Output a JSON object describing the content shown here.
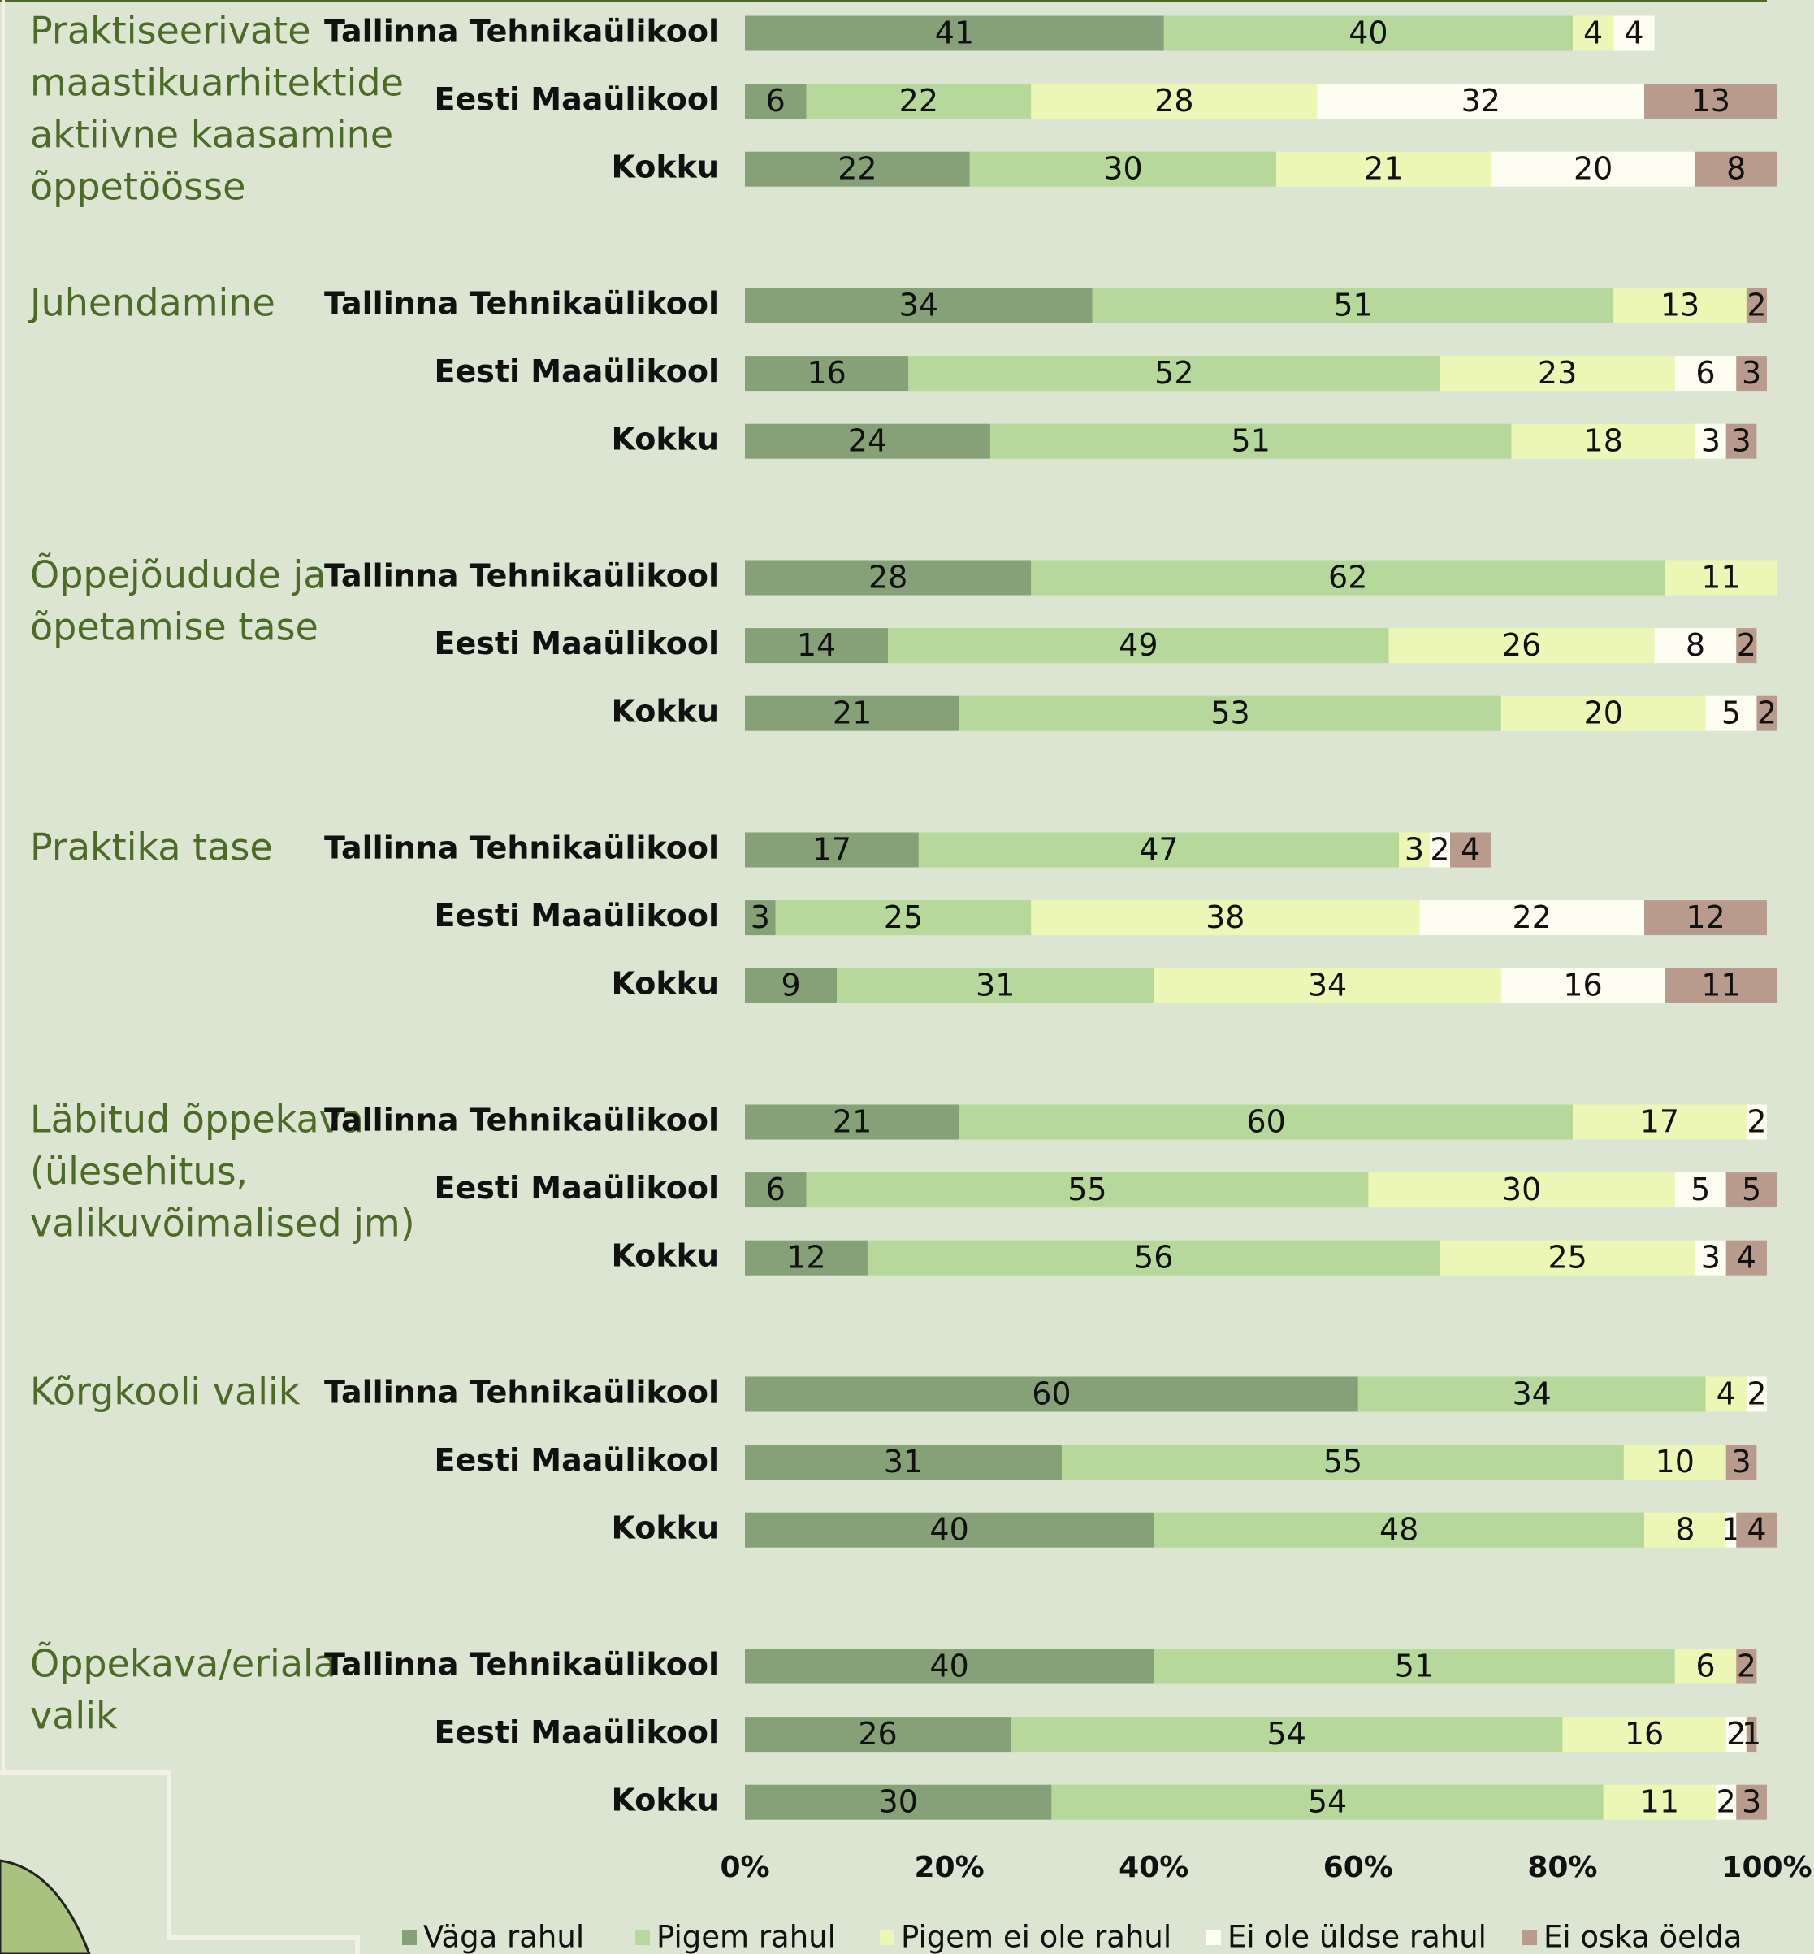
{
  "chart_data": {
    "type": "grouped-stacked-bar",
    "groups": [
      {
        "label": [
          "Praktiseerivate",
          "maastikuarhitektide",
          "aktiivne kaasamine",
          "õppetöösse"
        ],
        "categories": [
          "Tallinna Tehnikaülikool",
          "Eesti Maaülikool",
          "Kokku"
        ]
      },
      {
        "label": [
          "Juhendamine"
        ],
        "categories": [
          "Tallinna Tehnikaülikool",
          "Eesti Maaülikool",
          "Kokku"
        ]
      },
      {
        "label": [
          "Õppejõudude ja",
          "õpetamise tase"
        ],
        "categories": [
          "Tallinna Tehnikaülikool",
          "Eesti Maaülikool",
          "Kokku"
        ]
      },
      {
        "label": [
          "Praktika tase"
        ],
        "categories": [
          "Tallinna Tehnikaülikool",
          "Eesti Maaülikool",
          "Kokku"
        ]
      },
      {
        "label": [
          "Läbitud õppekava",
          "(ülesehitus,",
          "valikuvõimalised jm)"
        ],
        "categories": [
          "Tallinna Tehnikaülikool",
          "Eesti Maaülikool",
          "Kokku"
        ]
      },
      {
        "label": [
          "Kõrgkooli valik"
        ],
        "categories": [
          "Tallinna Tehnikaülikool",
          "Eesti Maaülikool",
          "Kokku"
        ]
      },
      {
        "label": [
          "Õppekava/eriala",
          "valik"
        ],
        "categories": [
          "Tallinna Tehnikaülikool",
          "Eesti Maaülikool",
          "Kokku"
        ]
      }
    ],
    "series": [
      {
        "name": "Väga rahul",
        "color": "#86a178",
        "values": [
          41,
          6,
          22,
          34,
          16,
          24,
          28,
          14,
          21,
          17,
          3,
          9,
          21,
          6,
          12,
          60,
          31,
          40,
          40,
          26,
          30
        ]
      },
      {
        "name": "Pigem rahul",
        "color": "#b6d89b",
        "values": [
          40,
          22,
          30,
          51,
          52,
          51,
          62,
          49,
          53,
          47,
          25,
          31,
          60,
          55,
          56,
          34,
          55,
          48,
          51,
          54,
          54
        ]
      },
      {
        "name": "Pigem ei ole rahul",
        "color": "#ecf7b5",
        "values": [
          4,
          28,
          21,
          13,
          23,
          18,
          11,
          26,
          20,
          3,
          38,
          34,
          17,
          30,
          25,
          4,
          10,
          8,
          6,
          16,
          11
        ]
      },
      {
        "name": "Ei ole üldse rahul",
        "color": "#fdfdf2",
        "values": [
          4,
          32,
          20,
          null,
          6,
          3,
          null,
          8,
          5,
          2,
          22,
          16,
          2,
          5,
          3,
          2,
          null,
          1,
          null,
          2,
          2
        ]
      },
      {
        "name": "Ei oska öelda",
        "color": "#b99b8d",
        "values": [
          null,
          13,
          8,
          2,
          3,
          3,
          null,
          2,
          2,
          4,
          12,
          11,
          null,
          5,
          4,
          null,
          3,
          4,
          2,
          1,
          3
        ]
      }
    ],
    "xlim": [
      0,
      100
    ],
    "xticks": [
      {
        "value": 0,
        "label": "0%"
      },
      {
        "value": 20,
        "label": "20%"
      },
      {
        "value": 40,
        "label": "40%"
      },
      {
        "value": 60,
        "label": "60%"
      },
      {
        "value": 80,
        "label": "80%"
      },
      {
        "value": 100,
        "label": "100%"
      }
    ],
    "legend": "bottom"
  }
}
